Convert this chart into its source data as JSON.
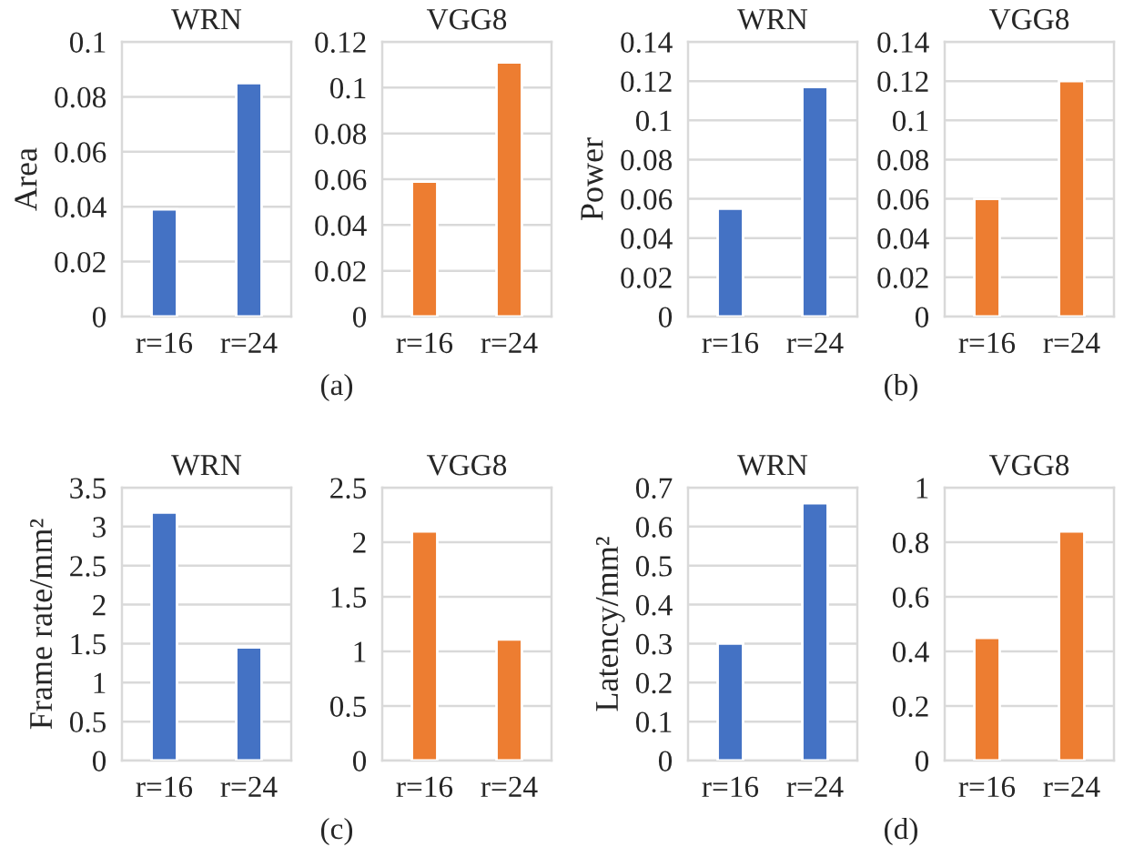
{
  "chart_data": [
    {
      "type": "bar",
      "title": "WRN",
      "ylabel": "Area",
      "categories": [
        "r=16",
        "r=24"
      ],
      "series": [
        {
          "color": "#4472c4",
          "values": [
            0.039,
            0.085
          ]
        }
      ],
      "ylim": [
        0,
        0.1
      ],
      "yticks": [
        0,
        0.02,
        0.04,
        0.06,
        0.08,
        0.1
      ],
      "grid": "y"
    },
    {
      "type": "bar",
      "title": "VGG8",
      "categories": [
        "r=16",
        "r=24"
      ],
      "series": [
        {
          "color": "#ed7d31",
          "values": [
            0.059,
            0.111
          ]
        }
      ],
      "ylim": [
        0,
        0.12
      ],
      "yticks": [
        0,
        0.02,
        0.04,
        0.06,
        0.08,
        0.1,
        0.12
      ],
      "grid": "y",
      "annotations": [
        "(a)"
      ]
    },
    {
      "type": "bar",
      "title": "WRN",
      "ylabel": "Power",
      "categories": [
        "r=16",
        "r=24"
      ],
      "series": [
        {
          "color": "#4472c4",
          "values": [
            0.055,
            0.117
          ]
        }
      ],
      "ylim": [
        0,
        0.14
      ],
      "yticks": [
        0,
        0.02,
        0.04,
        0.06,
        0.08,
        0.1,
        0.12,
        0.14
      ],
      "grid": "y"
    },
    {
      "type": "bar",
      "title": "VGG8",
      "categories": [
        "r=16",
        "r=24"
      ],
      "series": [
        {
          "color": "#ed7d31",
          "values": [
            0.06,
            0.12
          ]
        }
      ],
      "ylim": [
        0,
        0.14
      ],
      "yticks": [
        0,
        0.02,
        0.04,
        0.06,
        0.08,
        0.1,
        0.12,
        0.14
      ],
      "grid": "y",
      "annotations": [
        "(b)"
      ]
    },
    {
      "type": "bar",
      "title": "WRN",
      "ylabel": "Frame rate/mm²",
      "categories": [
        "r=16",
        "r=24"
      ],
      "series": [
        {
          "color": "#4472c4",
          "values": [
            3.18,
            1.45
          ]
        }
      ],
      "ylim": [
        0,
        3.5
      ],
      "yticks": [
        0,
        0.5,
        1,
        1.5,
        2,
        2.5,
        3,
        3.5
      ],
      "grid": "y"
    },
    {
      "type": "bar",
      "title": "VGG8",
      "categories": [
        "r=16",
        "r=24"
      ],
      "series": [
        {
          "color": "#ed7d31",
          "values": [
            2.1,
            1.11
          ]
        }
      ],
      "ylim": [
        0,
        2.5
      ],
      "yticks": [
        0,
        0.5,
        1,
        1.5,
        2,
        2.5
      ],
      "grid": "y",
      "annotations": [
        "(c)"
      ]
    },
    {
      "type": "bar",
      "title": "WRN",
      "ylabel": "Latency/mm²",
      "categories": [
        "r=16",
        "r=24"
      ],
      "series": [
        {
          "color": "#4472c4",
          "values": [
            0.3,
            0.66
          ]
        }
      ],
      "ylim": [
        0,
        0.7
      ],
      "yticks": [
        0,
        0.1,
        0.2,
        0.3,
        0.4,
        0.5,
        0.6,
        0.7
      ],
      "grid": "y"
    },
    {
      "type": "bar",
      "title": "VGG8",
      "categories": [
        "r=16",
        "r=24"
      ],
      "series": [
        {
          "color": "#ed7d31",
          "values": [
            0.45,
            0.84
          ]
        }
      ],
      "ylim": [
        0,
        1
      ],
      "yticks": [
        0,
        0.2,
        0.4,
        0.6,
        0.8,
        1
      ],
      "grid": "y",
      "annotations": [
        "(d)"
      ]
    }
  ]
}
